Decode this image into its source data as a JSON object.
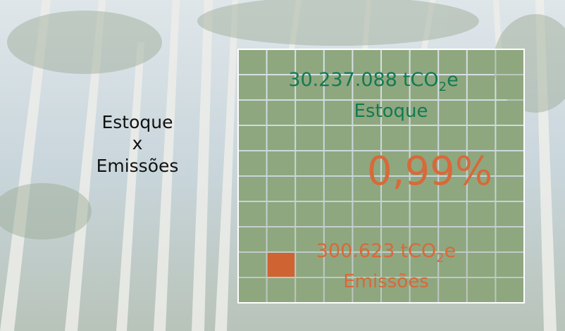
{
  "left_label": {
    "line1": "Estoque",
    "line2": "x",
    "line3": "Emissões"
  },
  "stock": {
    "value": "30.237.088",
    "unit": "tCO",
    "subscript": "2",
    "unit_suffix": "e",
    "label": "Estoque"
  },
  "percentage": "0,99%",
  "emissions": {
    "value": "300.623",
    "unit": "tCO",
    "subscript": "2",
    "unit_suffix": "e",
    "label": "Emissões"
  }
}
